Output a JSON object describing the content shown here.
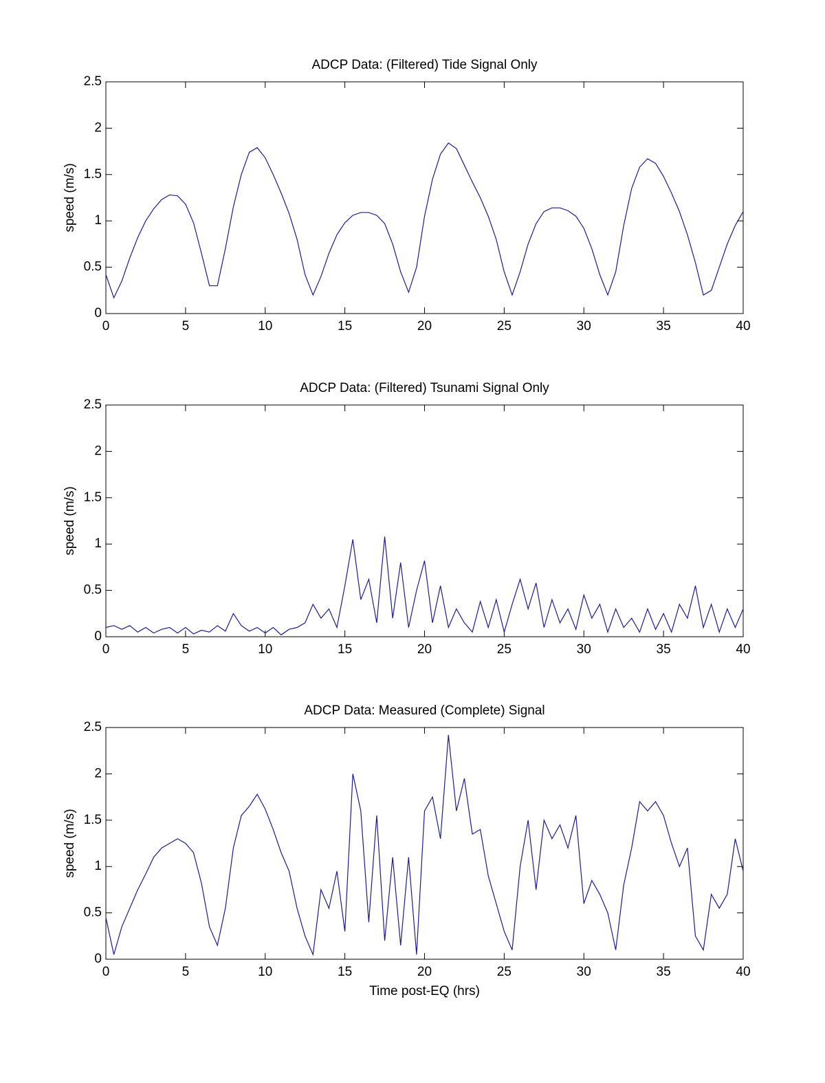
{
  "chart_data": [
    {
      "type": "line",
      "title": "ADCP Data: (Filtered) Tide Signal Only",
      "ylabel": "speed (m/s)",
      "color": "#1c1c8f",
      "x": [
        0,
        0.5,
        1,
        1.5,
        2,
        2.5,
        3,
        3.5,
        4,
        4.5,
        5,
        5.5,
        6,
        6.5,
        7,
        7.5,
        8,
        8.5,
        9,
        9.5,
        10,
        10.5,
        11,
        11.5,
        12,
        12.5,
        13,
        13.5,
        14,
        14.5,
        15,
        15.5,
        16,
        16.5,
        17,
        17.5,
        18,
        18.5,
        19,
        19.5,
        20,
        20.5,
        21,
        21.5,
        22,
        22.5,
        23,
        23.5,
        24,
        24.5,
        25,
        25.5,
        26,
        26.5,
        27,
        27.5,
        28,
        28.5,
        29,
        29.5,
        30,
        30.5,
        31,
        31.5,
        32,
        32.5,
        33,
        33.5,
        34,
        34.5,
        35,
        35.5,
        36,
        36.5,
        37,
        37.5,
        38,
        38.5,
        39,
        39.5,
        40
      ],
      "values": [
        0.42,
        0.17,
        0.35,
        0.6,
        0.82,
        1.0,
        1.13,
        1.23,
        1.28,
        1.27,
        1.18,
        0.98,
        0.65,
        0.3,
        0.3,
        0.7,
        1.15,
        1.5,
        1.74,
        1.79,
        1.68,
        1.5,
        1.3,
        1.08,
        0.8,
        0.42,
        0.2,
        0.4,
        0.65,
        0.85,
        0.98,
        1.06,
        1.09,
        1.09,
        1.06,
        0.97,
        0.75,
        0.45,
        0.23,
        0.5,
        1.05,
        1.45,
        1.72,
        1.84,
        1.78,
        1.6,
        1.42,
        1.25,
        1.05,
        0.8,
        0.45,
        0.2,
        0.45,
        0.75,
        0.97,
        1.1,
        1.14,
        1.14,
        1.11,
        1.05,
        0.92,
        0.7,
        0.42,
        0.2,
        0.45,
        0.95,
        1.35,
        1.58,
        1.67,
        1.62,
        1.48,
        1.3,
        1.1,
        0.85,
        0.55,
        0.2,
        0.25,
        0.5,
        0.75,
        0.95,
        1.1
      ],
      "xlim": [
        0,
        40
      ],
      "ylim": [
        0,
        2.5
      ],
      "xticks": [
        0,
        5,
        10,
        15,
        20,
        25,
        30,
        35,
        40
      ],
      "yticks": [
        0,
        0.5,
        1,
        1.5,
        2,
        2.5
      ]
    },
    {
      "type": "line",
      "title": "ADCP Data: (Filtered) Tsunami Signal Only",
      "ylabel": "speed (m/s)",
      "color": "#1c1c8f",
      "x": [
        0,
        0.5,
        1,
        1.5,
        2,
        2.5,
        3,
        3.5,
        4,
        4.5,
        5,
        5.5,
        6,
        6.5,
        7,
        7.5,
        8,
        8.5,
        9,
        9.5,
        10,
        10.5,
        11,
        11.5,
        12,
        12.5,
        13,
        13.5,
        14,
        14.5,
        15,
        15.5,
        16,
        16.5,
        17,
        17.5,
        18,
        18.5,
        19,
        19.5,
        20,
        20.5,
        21,
        21.5,
        22,
        22.5,
        23,
        23.5,
        24,
        24.5,
        25,
        25.5,
        26,
        26.5,
        27,
        27.5,
        28,
        28.5,
        29,
        29.5,
        30,
        30.5,
        31,
        31.5,
        32,
        32.5,
        33,
        33.5,
        34,
        34.5,
        35,
        35.5,
        36,
        36.5,
        37,
        37.5,
        38,
        38.5,
        39,
        39.5,
        40
      ],
      "values": [
        0.1,
        0.12,
        0.08,
        0.12,
        0.05,
        0.1,
        0.04,
        0.08,
        0.1,
        0.04,
        0.1,
        0.03,
        0.07,
        0.05,
        0.12,
        0.06,
        0.25,
        0.12,
        0.06,
        0.1,
        0.04,
        0.1,
        0.02,
        0.08,
        0.1,
        0.15,
        0.35,
        0.2,
        0.3,
        0.1,
        0.55,
        1.05,
        0.4,
        0.62,
        0.15,
        1.08,
        0.2,
        0.8,
        0.1,
        0.5,
        0.82,
        0.15,
        0.55,
        0.1,
        0.3,
        0.15,
        0.05,
        0.38,
        0.1,
        0.4,
        0.05,
        0.35,
        0.62,
        0.3,
        0.58,
        0.1,
        0.4,
        0.15,
        0.3,
        0.08,
        0.45,
        0.2,
        0.35,
        0.05,
        0.3,
        0.1,
        0.2,
        0.05,
        0.3,
        0.08,
        0.25,
        0.05,
        0.35,
        0.2,
        0.55,
        0.1,
        0.35,
        0.05,
        0.3,
        0.1,
        0.3
      ],
      "xlim": [
        0,
        40
      ],
      "ylim": [
        0,
        2.5
      ],
      "xticks": [
        0,
        5,
        10,
        15,
        20,
        25,
        30,
        35,
        40
      ],
      "yticks": [
        0,
        0.5,
        1,
        1.5,
        2,
        2.5
      ]
    },
    {
      "type": "line",
      "title": "ADCP Data: Measured (Complete) Signal",
      "ylabel": "speed (m/s)",
      "xlabel": "Time post-EQ (hrs)",
      "color": "#1c1c8f",
      "x": [
        0,
        0.5,
        1,
        1.5,
        2,
        2.5,
        3,
        3.5,
        4,
        4.5,
        5,
        5.5,
        6,
        6.5,
        7,
        7.5,
        8,
        8.5,
        9,
        9.5,
        10,
        10.5,
        11,
        11.5,
        12,
        12.5,
        13,
        13.5,
        14,
        14.5,
        15,
        15.5,
        16,
        16.5,
        17,
        17.5,
        18,
        18.5,
        19,
        19.5,
        20,
        20.5,
        21,
        21.5,
        22,
        22.5,
        23,
        23.5,
        24,
        24.5,
        25,
        25.5,
        26,
        26.5,
        27,
        27.5,
        28,
        28.5,
        29,
        29.5,
        30,
        30.5,
        31,
        31.5,
        32,
        32.5,
        33,
        33.5,
        34,
        34.5,
        35,
        35.5,
        36,
        36.5,
        37,
        37.5,
        38,
        38.5,
        39,
        39.5,
        40
      ],
      "values": [
        0.45,
        0.05,
        0.35,
        0.55,
        0.75,
        0.92,
        1.1,
        1.2,
        1.25,
        1.3,
        1.25,
        1.15,
        0.82,
        0.35,
        0.15,
        0.55,
        1.2,
        1.55,
        1.65,
        1.78,
        1.62,
        1.4,
        1.15,
        0.95,
        0.55,
        0.25,
        0.05,
        0.75,
        0.55,
        0.95,
        0.3,
        2.0,
        1.6,
        0.4,
        1.55,
        0.2,
        1.1,
        0.15,
        1.1,
        0.05,
        1.6,
        1.75,
        1.3,
        2.42,
        1.6,
        1.95,
        1.35,
        1.4,
        0.9,
        0.6,
        0.3,
        0.1,
        1.0,
        1.5,
        0.75,
        1.5,
        1.3,
        1.45,
        1.2,
        1.55,
        0.6,
        0.85,
        0.7,
        0.5,
        0.1,
        0.8,
        1.2,
        1.7,
        1.6,
        1.7,
        1.55,
        1.25,
        1.0,
        1.2,
        0.25,
        0.1,
        0.7,
        0.55,
        0.7,
        1.3,
        0.95
      ],
      "xlim": [
        0,
        40
      ],
      "ylim": [
        0,
        2.5
      ],
      "xticks": [
        0,
        5,
        10,
        15,
        20,
        25,
        30,
        35,
        40
      ],
      "yticks": [
        0,
        0.5,
        1,
        1.5,
        2,
        2.5
      ]
    }
  ]
}
